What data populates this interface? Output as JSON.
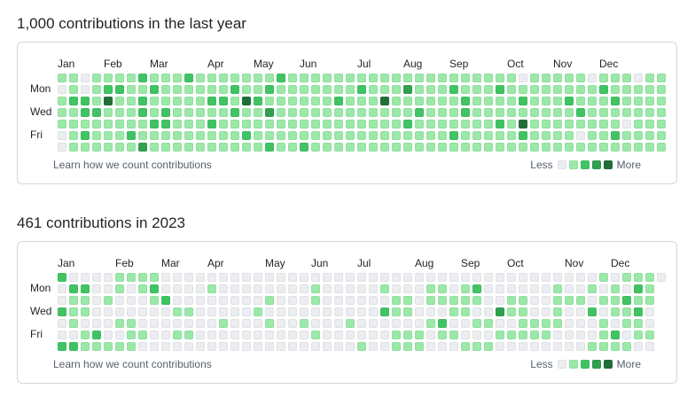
{
  "colors": {
    "level0": "#ebedf0",
    "level1": "#9be9a8",
    "level2": "#40c463",
    "level3": "#30a14e",
    "level4": "#216e39"
  },
  "sections": [
    {
      "title": "1,000 contributions in the last year",
      "months": [
        "Jan",
        "Feb",
        "Mar",
        "Apr",
        "May",
        "Jun",
        "Jul",
        "Aug",
        "Sep",
        "Oct",
        "Nov",
        "Dec"
      ],
      "month_weeks": [
        0,
        4,
        8,
        13,
        17,
        21,
        26,
        30,
        34,
        39,
        43,
        47
      ],
      "day_labels": [
        "Mon",
        "Wed",
        "Fri"
      ],
      "weeks": 53,
      "first_week_start_row": 0,
      "last_week_rows": 7,
      "footer_link": "Learn how we count contributions",
      "legend_less": "Less",
      "legend_more": "More",
      "levels": [
        "11011112111211111112111111111111111111110111110111011",
        "01012211211111121121111111211131112111211111111211111",
        "12214112111112214211111121114111111211112111211121111",
        "11221112121111121131111111111112111211111111121111111",
        "11111111221112111111111111111121111111214111111110111",
        "01211121111111112111111111111111112111112111101121111",
        "01111113111111111121121111111111111111111111111111111"
      ]
    },
    {
      "title": "461 contributions in 2023",
      "months": [
        "Jan",
        "Feb",
        "Mar",
        "Apr",
        "May",
        "Jun",
        "Jul",
        "Aug",
        "Sep",
        "Oct",
        "Nov",
        "Dec"
      ],
      "month_weeks": [
        0,
        5,
        9,
        13,
        18,
        22,
        26,
        31,
        35,
        39,
        44,
        48
      ],
      "day_labels": [
        "Mon",
        "Wed",
        "Fri"
      ],
      "weeks": 53,
      "first_week_start_row": 0,
      "last_week_rows": 1,
      "footer_link": "Learn how we count contributions",
      "legend_less": "Less",
      "legend_more": "More",
      "levels": [
        "20000111100000000000000000000000000000000000000101110",
        "02200101200001000000001000001000110120000001001010210",
        "01101000120000000010001000000110111110011001110112110",
        "21100000001100000100000000002110001100311001002011200",
        "01000110000000100010010001000000120011001111000101100",
        "00120011001100000000001000000111011000111110000120110",
        "22111110000000000000000000100111000111000000001111000"
      ]
    }
  ]
}
